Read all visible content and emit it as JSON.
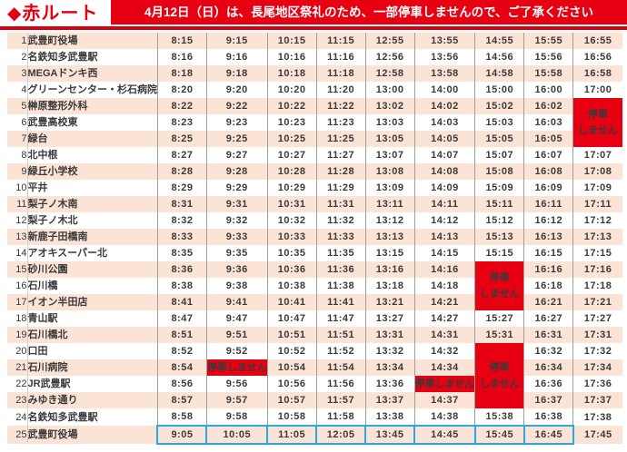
{
  "header": {
    "title": "◆赤ルート",
    "notice": "4月12日（日）は、長尾地区祭礼のため、一部停車しませんので、ご了承ください"
  },
  "colors": {
    "accent_red": "#e60012",
    "row_pink": "#fbe3d6",
    "highlight_blue": "#2da7dd"
  },
  "no_stop": {
    "big_label_line1": "停車",
    "big_label_line2": "しません",
    "small_label": "停車しません"
  },
  "timetable": {
    "type": "table",
    "rows": [
      {
        "no": 1,
        "name": "武豊町役場",
        "times": [
          "8:15",
          "9:15",
          "10:15",
          "11:15",
          "12:55",
          "13:55",
          "14:55",
          "15:55",
          "16:55"
        ]
      },
      {
        "no": 2,
        "name": "名鉄知多武豊駅",
        "times": [
          "8:16",
          "9:16",
          "10:16",
          "11:16",
          "12:56",
          "13:56",
          "14:56",
          "15:56",
          "16:56"
        ]
      },
      {
        "no": 3,
        "name": "MEGAドンキ西",
        "times": [
          "8:18",
          "9:18",
          "10:18",
          "11:18",
          "12:58",
          "13:58",
          "14:58",
          "15:58",
          "16:58"
        ]
      },
      {
        "no": 4,
        "name": "グリーンセンター・杉石病院",
        "times": [
          "8:20",
          "9:20",
          "10:20",
          "11:20",
          "13:00",
          "14:00",
          "15:00",
          "16:00",
          "17:00"
        ]
      },
      {
        "no": 5,
        "name": "榊原整形外科",
        "times": [
          "8:22",
          "9:22",
          "10:22",
          "11:22",
          "13:02",
          "14:02",
          "15:02",
          "16:02",
          null
        ]
      },
      {
        "no": 6,
        "name": "武豊高校東",
        "times": [
          "8:23",
          "9:23",
          "10:23",
          "11:23",
          "13:03",
          "14:03",
          "15:03",
          "16:03",
          null
        ]
      },
      {
        "no": 7,
        "name": "緑台",
        "times": [
          "8:25",
          "9:25",
          "10:25",
          "11:25",
          "13:05",
          "14:05",
          "15:05",
          "16:05",
          null
        ]
      },
      {
        "no": 8,
        "name": "北中根",
        "times": [
          "8:27",
          "9:27",
          "10:27",
          "11:27",
          "13:07",
          "14:07",
          "15:07",
          "16:07",
          "17:07"
        ]
      },
      {
        "no": 9,
        "name": "緑丘小学校",
        "times": [
          "8:28",
          "9:28",
          "10:28",
          "11:28",
          "13:08",
          "14:08",
          "15:08",
          "16:08",
          "17:08"
        ]
      },
      {
        "no": 10,
        "name": "平井",
        "times": [
          "8:29",
          "9:29",
          "10:29",
          "11:29",
          "13:09",
          "14:09",
          "15:09",
          "16:09",
          "17:09"
        ]
      },
      {
        "no": 11,
        "name": "梨子ノ木南",
        "times": [
          "8:31",
          "9:31",
          "10:31",
          "11:31",
          "13:11",
          "14:11",
          "15:11",
          "16:11",
          "17:11"
        ]
      },
      {
        "no": 12,
        "name": "梨子ノ木北",
        "times": [
          "8:32",
          "9:32",
          "10:32",
          "11:32",
          "13:12",
          "14:12",
          "15:12",
          "16:12",
          "17:12"
        ]
      },
      {
        "no": 13,
        "name": "新鹿子田橋南",
        "times": [
          "8:33",
          "9:33",
          "10:33",
          "11:33",
          "13:13",
          "14:13",
          "15:13",
          "16:13",
          "17:13"
        ]
      },
      {
        "no": 14,
        "name": "アオキスーパー北",
        "times": [
          "8:35",
          "9:35",
          "10:35",
          "11:35",
          "13:15",
          "14:15",
          "15:15",
          "16:15",
          "17:15"
        ]
      },
      {
        "no": 15,
        "name": "砂川公園",
        "times": [
          "8:36",
          "9:36",
          "10:36",
          "11:36",
          "13:16",
          "14:16",
          null,
          "16:16",
          "17:16"
        ]
      },
      {
        "no": 16,
        "name": "石川橋",
        "times": [
          "8:38",
          "9:38",
          "10:38",
          "11:38",
          "13:18",
          "14:18",
          null,
          "16:18",
          "17:18"
        ]
      },
      {
        "no": 17,
        "name": "イオン半田店",
        "times": [
          "8:41",
          "9:41",
          "10:41",
          "11:41",
          "13:21",
          "14:21",
          null,
          "16:21",
          "17:21"
        ]
      },
      {
        "no": 18,
        "name": "青山駅",
        "times": [
          "8:47",
          "9:47",
          "10:47",
          "11:47",
          "13:27",
          "14:27",
          "15:27",
          "16:27",
          "17:27"
        ]
      },
      {
        "no": 19,
        "name": "石川橋北",
        "times": [
          "8:51",
          "9:51",
          "10:51",
          "11:51",
          "13:31",
          "14:31",
          "15:31",
          "16:31",
          "17:31"
        ]
      },
      {
        "no": 20,
        "name": "口田",
        "times": [
          "8:52",
          "9:52",
          "10:52",
          "11:52",
          "13:32",
          "14:32",
          null,
          "16:32",
          "17:32"
        ]
      },
      {
        "no": 21,
        "name": "石川病院",
        "times": [
          "8:54",
          null,
          "10:54",
          "11:54",
          "13:34",
          "14:34",
          null,
          "16:34",
          "17:34"
        ]
      },
      {
        "no": 22,
        "name": "JR武豊駅",
        "times": [
          "8:56",
          "9:56",
          "10:56",
          "11:56",
          "13:36",
          null,
          null,
          "16:36",
          "17:36"
        ]
      },
      {
        "no": 23,
        "name": "みゆき通り",
        "times": [
          "8:57",
          "9:57",
          "10:57",
          "11:57",
          "13:37",
          "14:37",
          null,
          "16:37",
          "17:37"
        ]
      },
      {
        "no": 24,
        "name": "名鉄知多武豊駅",
        "times": [
          "8:58",
          "9:58",
          "10:58",
          "11:58",
          "13:38",
          "14:38",
          "15:38",
          "16:38",
          "17:38"
        ]
      },
      {
        "no": 25,
        "name": "武豊町役場",
        "times": [
          "9:05",
          "10:05",
          "11:05",
          "12:05",
          "13:45",
          "14:45",
          "15:45",
          "16:45",
          "17:45"
        ]
      }
    ],
    "no_stop_blocks": [
      {
        "col": 8,
        "row_start": 5,
        "row_end": 7
      },
      {
        "col": 6,
        "row_start": 15,
        "row_end": 17
      },
      {
        "col": 6,
        "row_start": 20,
        "row_end": 23
      }
    ],
    "no_stop_cells": [
      {
        "row": 21,
        "col": 1
      },
      {
        "row": 22,
        "col": 5
      }
    ],
    "highlight_row": 25,
    "highlight_cols_start": 0,
    "highlight_cols_end": 7
  }
}
